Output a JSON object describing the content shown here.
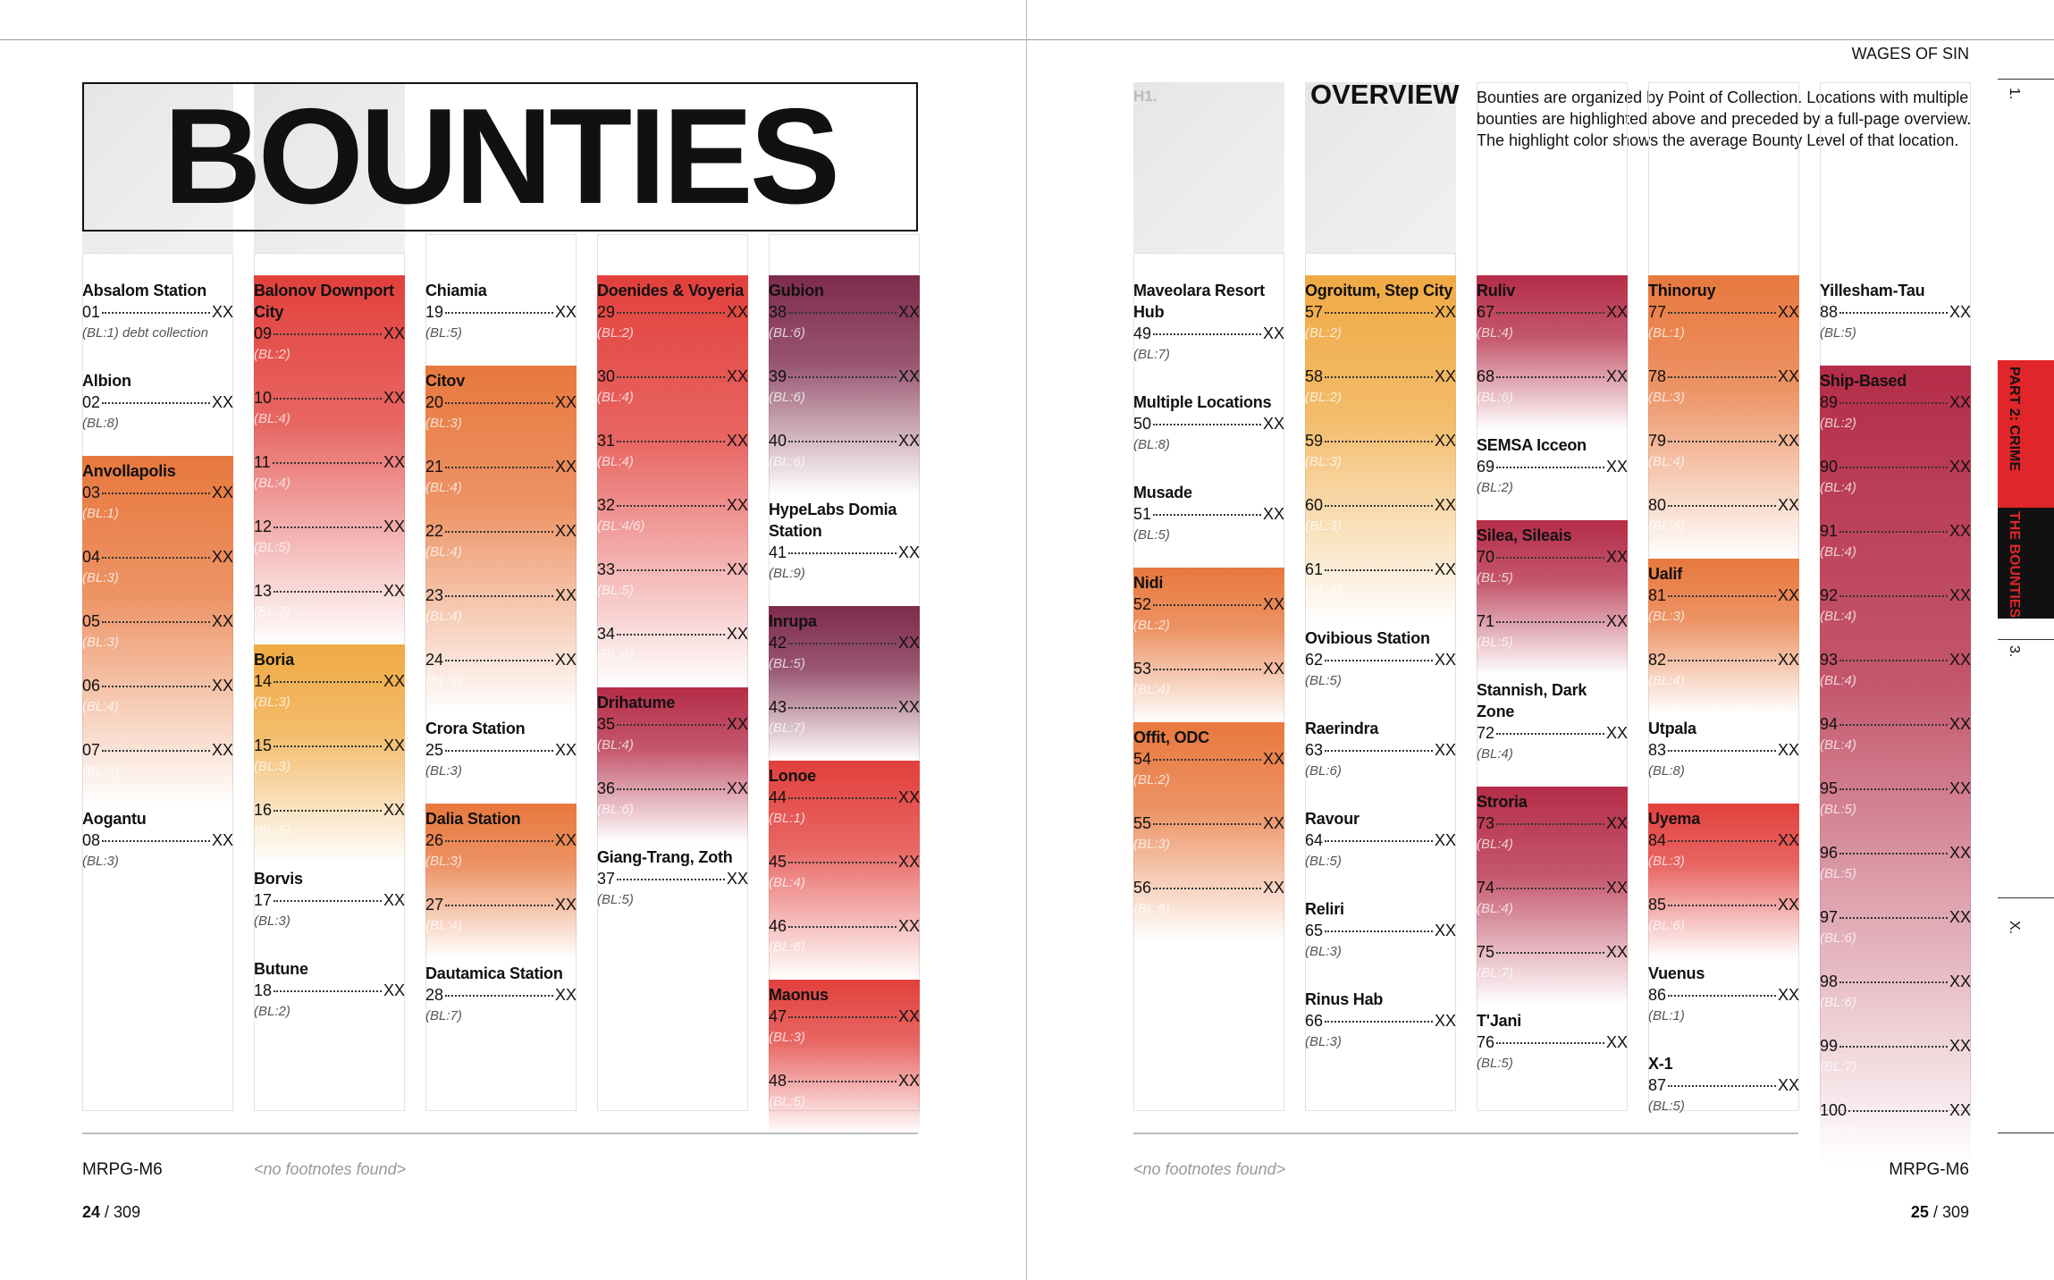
{
  "header": {
    "title": "BOUNTIES",
    "h1": "H1.",
    "overview_title": "OVERVIEW",
    "running_title": "WAGES OF SIN",
    "intro": "Bounties are organized by Point of Collection. Locations with multiple bounties are highlighted above and preceded by a full-page overview. The highlight color shows the average Bounty Level of that location."
  },
  "side_tabs": [
    "1.",
    "PART 2: CRIME",
    "THE BOUNTIES",
    "3.",
    "X."
  ],
  "columns": [
    [
      {
        "name": "Absalom Station",
        "entries": [
          {
            "num": "01",
            "reward": "XX",
            "note": "(BL:1) debt collection"
          }
        ]
      },
      {
        "name": "Albion",
        "entries": [
          {
            "num": "02",
            "reward": "XX",
            "note": "(BL:8)"
          }
        ]
      },
      {
        "name": "Anvollapolis",
        "color": "#e8783e",
        "entries": [
          {
            "num": "03",
            "reward": "XX",
            "note": "(BL:1)"
          },
          {
            "num": "04",
            "reward": "XX",
            "note": "(BL:3)"
          },
          {
            "num": "05",
            "reward": "XX",
            "note": "(BL:3)"
          },
          {
            "num": "06",
            "reward": "XX",
            "note": "(BL:4)"
          },
          {
            "num": "07",
            "reward": "XX",
            "note": "(BL:8)"
          }
        ]
      },
      {
        "name": "Aogantu",
        "entries": [
          {
            "num": "08",
            "reward": "XX",
            "note": "(BL:3)"
          }
        ]
      }
    ],
    [
      {
        "name": "Balonov Downport City",
        "color": "#e2403c",
        "entries": [
          {
            "num": "09",
            "reward": "XX",
            "note": "(BL:2)"
          },
          {
            "num": "10",
            "reward": "XX",
            "note": "(BL:4)"
          },
          {
            "num": "11",
            "reward": "XX",
            "note": "(BL:4)"
          },
          {
            "num": "12",
            "reward": "XX",
            "note": "(BL:5)"
          },
          {
            "num": "13",
            "reward": "XX",
            "note": "(BL:7)"
          }
        ]
      },
      {
        "name": "Boria",
        "color": "#f0aa44",
        "entries": [
          {
            "num": "14",
            "reward": "XX",
            "note": "(BL:3)"
          },
          {
            "num": "15",
            "reward": "XX",
            "note": "(BL:3)"
          },
          {
            "num": "16",
            "reward": "XX",
            "note": "(BL:5)"
          }
        ]
      },
      {
        "name": "Borvis",
        "entries": [
          {
            "num": "17",
            "reward": "XX",
            "note": "(BL:3)"
          }
        ]
      },
      {
        "name": "Butune",
        "entries": [
          {
            "num": "18",
            "reward": "XX",
            "note": "(BL:2)"
          }
        ]
      }
    ],
    [
      {
        "name": "Chiamia",
        "entries": [
          {
            "num": "19",
            "reward": "XX",
            "note": "(BL:5)"
          }
        ]
      },
      {
        "name": "Citov",
        "color": "#e8783e",
        "entries": [
          {
            "num": "20",
            "reward": "XX",
            "note": "(BL:3)"
          },
          {
            "num": "21",
            "reward": "XX",
            "note": "(BL:4)"
          },
          {
            "num": "22",
            "reward": "XX",
            "note": "(BL:4)"
          },
          {
            "num": "23",
            "reward": "XX",
            "note": "(BL:4)"
          },
          {
            "num": "24",
            "reward": "XX",
            "note": "(BL:3)"
          }
        ]
      },
      {
        "name": "Crora Station",
        "entries": [
          {
            "num": "25",
            "reward": "XX",
            "note": "(BL:3)"
          }
        ]
      },
      {
        "name": "Dalia Station",
        "color": "#e8783e",
        "entries": [
          {
            "num": "26",
            "reward": "XX",
            "note": "(BL:3)"
          },
          {
            "num": "27",
            "reward": "XX",
            "note": "(BL:4)"
          }
        ]
      },
      {
        "name": "Dautamica Station",
        "entries": [
          {
            "num": "28",
            "reward": "XX",
            "note": "(BL:7)"
          }
        ]
      }
    ],
    [
      {
        "name": "Doenides & Voyeria",
        "color": "#e2403c",
        "entries": [
          {
            "num": "29",
            "reward": "XX",
            "note": "(BL:2)"
          },
          {
            "num": "30",
            "reward": "XX",
            "note": "(BL:4)"
          },
          {
            "num": "31",
            "reward": "XX",
            "note": "(BL:4)"
          },
          {
            "num": "32",
            "reward": "XX",
            "note": "(BL:4/6)"
          },
          {
            "num": "33",
            "reward": "XX",
            "note": "(BL:5)"
          },
          {
            "num": "34",
            "reward": "XX",
            "note": "(BL:6)"
          }
        ]
      },
      {
        "name": "Drihatume",
        "color": "#b52d48",
        "entries": [
          {
            "num": "35",
            "reward": "XX",
            "note": "(BL:4)"
          },
          {
            "num": "36",
            "reward": "XX",
            "note": "(BL:6)"
          }
        ]
      },
      {
        "name": "Giang-Trang, Zoth",
        "entries": [
          {
            "num": "37",
            "reward": "XX",
            "note": "(BL:5)"
          }
        ]
      }
    ],
    [
      {
        "name": "Gubion",
        "color": "#7e2b4c",
        "entries": [
          {
            "num": "38",
            "reward": "XX",
            "note": "(BL:6)"
          },
          {
            "num": "39",
            "reward": "XX",
            "note": "(BL:6)"
          },
          {
            "num": "40",
            "reward": "XX",
            "note": "(BL:6)"
          }
        ]
      },
      {
        "name": "HypeLabs Domia Station",
        "entries": [
          {
            "num": "41",
            "reward": "XX",
            "note": "(BL:9)"
          }
        ]
      },
      {
        "name": "Inrupa",
        "color": "#7e2b4c",
        "entries": [
          {
            "num": "42",
            "reward": "XX",
            "note": "(BL:5)"
          },
          {
            "num": "43",
            "reward": "XX",
            "note": "(BL:7)"
          }
        ]
      },
      {
        "name": "Lonoe",
        "color": "#e2403c",
        "entries": [
          {
            "num": "44",
            "reward": "XX",
            "note": "(BL:1)"
          },
          {
            "num": "45",
            "reward": "XX",
            "note": "(BL:4)"
          },
          {
            "num": "46",
            "reward": "XX",
            "note": "(BL:8)"
          }
        ]
      },
      {
        "name": "Maonus",
        "color": "#e2403c",
        "entries": [
          {
            "num": "47",
            "reward": "XX",
            "note": "(BL:3)"
          },
          {
            "num": "48",
            "reward": "XX",
            "note": "(BL:5)"
          }
        ]
      }
    ],
    [
      {
        "name": "Maveolara Resort Hub",
        "entries": [
          {
            "num": "49",
            "reward": "XX",
            "note": "(BL:7)"
          }
        ]
      },
      {
        "name": "Multiple Locations",
        "entries": [
          {
            "num": "50",
            "reward": "XX",
            "note": "(BL:8)"
          }
        ]
      },
      {
        "name": "Musade",
        "entries": [
          {
            "num": "51",
            "reward": "XX",
            "note": "(BL:5)"
          }
        ]
      },
      {
        "name": "Nidi",
        "color": "#e8783e",
        "entries": [
          {
            "num": "52",
            "reward": "XX",
            "note": "(BL:2)"
          },
          {
            "num": "53",
            "reward": "XX",
            "note": "(BL:4)"
          }
        ]
      },
      {
        "name": "Offit, ODC",
        "color": "#e8783e",
        "entries": [
          {
            "num": "54",
            "reward": "XX",
            "note": "(BL:2)"
          },
          {
            "num": "55",
            "reward": "XX",
            "note": "(BL:3)"
          },
          {
            "num": "56",
            "reward": "XX",
            "note": "(BL:6)"
          }
        ]
      }
    ],
    [
      {
        "name": "Ogroitum, Step City",
        "color": "#f0aa44",
        "entries": [
          {
            "num": "57",
            "reward": "XX",
            "note": "(BL:2)"
          },
          {
            "num": "58",
            "reward": "XX",
            "note": "(BL:2)"
          },
          {
            "num": "59",
            "reward": "XX",
            "note": "(BL:3)"
          },
          {
            "num": "60",
            "reward": "XX",
            "note": "(BL:3)"
          },
          {
            "num": "61",
            "reward": "XX",
            "note": "(BL:4)"
          }
        ]
      },
      {
        "name": "Ovibious Station",
        "entries": [
          {
            "num": "62",
            "reward": "XX",
            "note": "(BL:5)"
          }
        ]
      },
      {
        "name": "Raerindra",
        "entries": [
          {
            "num": "63",
            "reward": "XX",
            "note": "(BL:6)"
          }
        ]
      },
      {
        "name": "Ravour",
        "entries": [
          {
            "num": "64",
            "reward": "XX",
            "note": "(BL:5)"
          }
        ]
      },
      {
        "name": "Reliri",
        "entries": [
          {
            "num": "65",
            "reward": "XX",
            "note": "(BL:3)"
          }
        ]
      },
      {
        "name": "Rinus Hab",
        "entries": [
          {
            "num": "66",
            "reward": "XX",
            "note": "(BL:3)"
          }
        ]
      }
    ],
    [
      {
        "name": "Ruliv",
        "color": "#b52d48",
        "entries": [
          {
            "num": "67",
            "reward": "XX",
            "note": "(BL:4)"
          },
          {
            "num": "68",
            "reward": "XX",
            "note": "(BL:6)"
          }
        ]
      },
      {
        "name": "SEMSA Icceon",
        "entries": [
          {
            "num": "69",
            "reward": "XX",
            "note": "(BL:2)"
          }
        ]
      },
      {
        "name": "Silea, Sileais",
        "color": "#b52d48",
        "entries": [
          {
            "num": "70",
            "reward": "XX",
            "note": "(BL:5)"
          },
          {
            "num": "71",
            "reward": "XX",
            "note": "(BL:5)"
          }
        ]
      },
      {
        "name": "Stannish, Dark Zone",
        "entries": [
          {
            "num": "72",
            "reward": "XX",
            "note": "(BL:4)"
          }
        ]
      },
      {
        "name": "Stroria",
        "color": "#b52d48",
        "entries": [
          {
            "num": "73",
            "reward": "XX",
            "note": "(BL:4)"
          },
          {
            "num": "74",
            "reward": "XX",
            "note": "(BL:4)"
          },
          {
            "num": "75",
            "reward": "XX",
            "note": "(BL:7)"
          }
        ]
      },
      {
        "name": "T'Jani",
        "entries": [
          {
            "num": "76",
            "reward": "XX",
            "note": "(BL:5)"
          }
        ]
      }
    ],
    [
      {
        "name": "Thinoruy",
        "color": "#e8783e",
        "entries": [
          {
            "num": "77",
            "reward": "XX",
            "note": "(BL:1)"
          },
          {
            "num": "78",
            "reward": "XX",
            "note": "(BL:3)"
          },
          {
            "num": "79",
            "reward": "XX",
            "note": "(BL:4)"
          },
          {
            "num": "80",
            "reward": "XX",
            "note": "(BL:6)"
          }
        ]
      },
      {
        "name": "Ualif",
        "color": "#e8783e",
        "entries": [
          {
            "num": "81",
            "reward": "XX",
            "note": "(BL:3)"
          },
          {
            "num": "82",
            "reward": "XX",
            "note": "(BL:4)"
          }
        ]
      },
      {
        "name": "Utpala",
        "entries": [
          {
            "num": "83",
            "reward": "XX",
            "note": "(BL:8)"
          }
        ]
      },
      {
        "name": "Uyema",
        "color": "#e2403c",
        "entries": [
          {
            "num": "84",
            "reward": "XX",
            "note": "(BL:3)"
          },
          {
            "num": "85",
            "reward": "XX",
            "note": "(BL:6)"
          }
        ]
      },
      {
        "name": "Vuenus",
        "entries": [
          {
            "num": "86",
            "reward": "XX",
            "note": "(BL:1)"
          }
        ]
      },
      {
        "name": "X-1",
        "entries": [
          {
            "num": "87",
            "reward": "XX",
            "note": "(BL:5)"
          }
        ]
      }
    ],
    [
      {
        "name": "Yillesham-Tau",
        "entries": [
          {
            "num": "88",
            "reward": "XX",
            "note": "(BL:5)"
          }
        ]
      },
      {
        "name": "Ship-Based",
        "color": "#b52d48",
        "entries": [
          {
            "num": "89",
            "reward": "XX",
            "note": "(BL:2)"
          },
          {
            "num": "90",
            "reward": "XX",
            "note": "(BL:4)"
          },
          {
            "num": "91",
            "reward": "XX",
            "note": "(BL:4)"
          },
          {
            "num": "92",
            "reward": "XX",
            "note": "(BL:4)"
          },
          {
            "num": "93",
            "reward": "XX",
            "note": "(BL:4)"
          },
          {
            "num": "94",
            "reward": "XX",
            "note": "(BL:4)"
          },
          {
            "num": "95",
            "reward": "XX",
            "note": "(BL:5)"
          },
          {
            "num": "96",
            "reward": "XX",
            "note": "(BL:5)"
          },
          {
            "num": "97",
            "reward": "XX",
            "note": "(BL:6)"
          },
          {
            "num": "98",
            "reward": "XX",
            "note": "(BL:6)"
          },
          {
            "num": "99",
            "reward": "XX",
            "note": "(BL:7)"
          },
          {
            "num": "100",
            "reward": "XX",
            "note": "(BL:9)"
          }
        ]
      }
    ]
  ],
  "footer": {
    "left": {
      "code": "MRPG-M6",
      "footnote": "<no footnotes found>",
      "page": "24",
      "total": "/ 309"
    },
    "right": {
      "code": "MRPG-M6",
      "footnote": "<no footnotes found>",
      "page": "25",
      "total": "/ 309"
    }
  }
}
